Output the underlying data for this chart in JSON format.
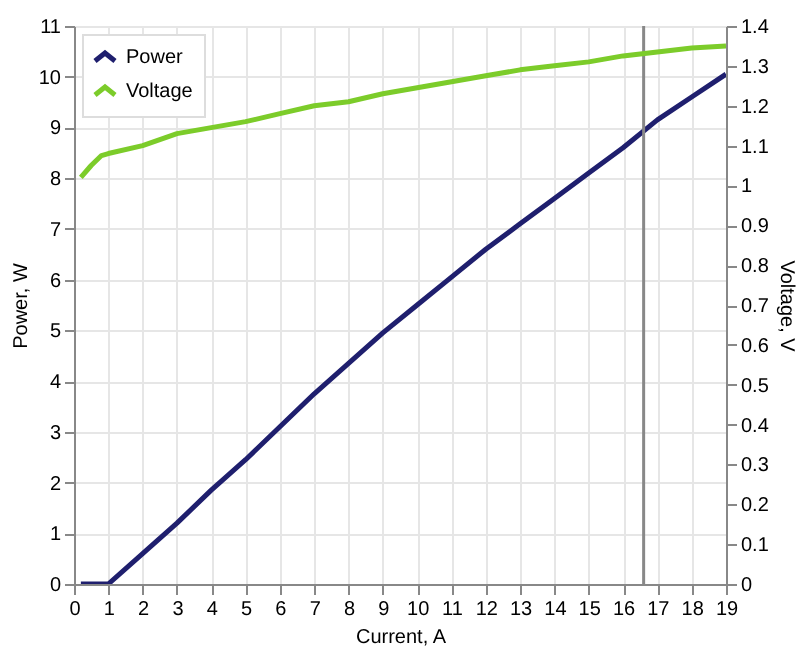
{
  "chart_data": {
    "type": "line",
    "xlabel": "Current, A",
    "ylabel": "Power, W",
    "y2label": "Voltage, V",
    "series": [
      {
        "name": "Power",
        "color": "#1f1f6e",
        "x": [
          0.2,
          1,
          2,
          3,
          4,
          5,
          6,
          7,
          8,
          9,
          10,
          11,
          12,
          13,
          14,
          15,
          16,
          17,
          18,
          19
        ],
        "values": [
          0,
          0,
          0.6,
          1.2,
          1.85,
          2.45,
          3.1,
          3.75,
          4.35,
          4.95,
          5.5,
          6.05,
          6.6,
          7.1,
          7.6,
          8.1,
          8.6,
          9.15,
          9.6,
          10.05
        ]
      },
      {
        "name": "Voltage",
        "color": "#7ccc2a",
        "axis": "y2",
        "x": [
          0.2,
          0.5,
          0.8,
          1,
          2,
          3,
          4,
          5,
          6,
          7,
          8,
          9,
          10,
          11,
          12,
          13,
          14,
          15,
          16,
          17,
          18,
          19
        ],
        "values": [
          1.02,
          1.05,
          1.075,
          1.08,
          1.1,
          1.13,
          1.145,
          1.16,
          1.18,
          1.2,
          1.21,
          1.23,
          1.245,
          1.26,
          1.275,
          1.29,
          1.3,
          1.31,
          1.325,
          1.335,
          1.345,
          1.35
        ]
      }
    ],
    "xlim": [
      0,
      19
    ],
    "xticks": [
      0,
      1,
      2,
      3,
      4,
      5,
      6,
      7,
      8,
      9,
      10,
      11,
      12,
      13,
      14,
      15,
      16,
      17,
      18,
      19
    ],
    "ylim": [
      0,
      11
    ],
    "yticks": [
      0,
      1,
      2,
      3,
      4,
      5,
      6,
      7,
      8,
      9,
      10,
      11
    ],
    "y2lim": [
      0,
      1.4
    ],
    "y2ticks": [
      0,
      0.1,
      0.2,
      0.3,
      0.4,
      0.5,
      0.6,
      0.7,
      0.8,
      0.9,
      1,
      1.1,
      1.2,
      1.3,
      1.4
    ],
    "ref_lines": [
      {
        "axis": "x",
        "value": 16.6,
        "color": "#888888"
      }
    ],
    "grid": true,
    "legend": "top left",
    "line_style": "solid"
  }
}
